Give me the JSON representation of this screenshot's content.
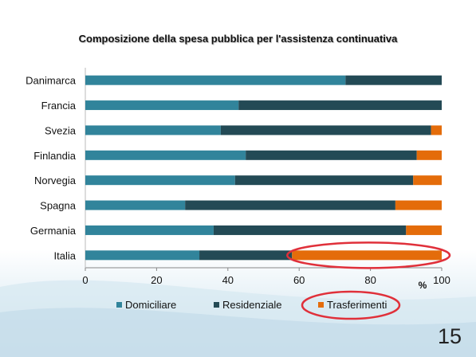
{
  "slide": {
    "page_number": "15"
  },
  "colors": {
    "domiciliare": "#31849b",
    "residenziale": "#234a55",
    "trasferimenti": "#e46c0a",
    "highlight": "#e0303a"
  },
  "chart_data": {
    "type": "bar",
    "orientation": "horizontal",
    "stacked": true,
    "title": "Composizione della spesa pubblica per l'assistenza continuativa",
    "xlabel": "%",
    "ylabel": "",
    "xlim": [
      0,
      100
    ],
    "x_ticks": [
      0,
      20,
      40,
      60,
      80,
      100
    ],
    "grid": false,
    "legend_position": "bottom",
    "categories": [
      "Danimarca",
      "Francia",
      "Svezia",
      "Finlandia",
      "Norvegia",
      "Spagna",
      "Germania",
      "Italia"
    ],
    "series": [
      {
        "name": "Domiciliare",
        "values": [
          73,
          43,
          38,
          45,
          42,
          28,
          36,
          32
        ]
      },
      {
        "name": "Residenziale",
        "values": [
          27,
          57,
          59,
          48,
          50,
          59,
          54,
          26
        ]
      },
      {
        "name": "Trasferimenti",
        "values": [
          0,
          0,
          3,
          7,
          8,
          13,
          10,
          42
        ]
      }
    ]
  }
}
